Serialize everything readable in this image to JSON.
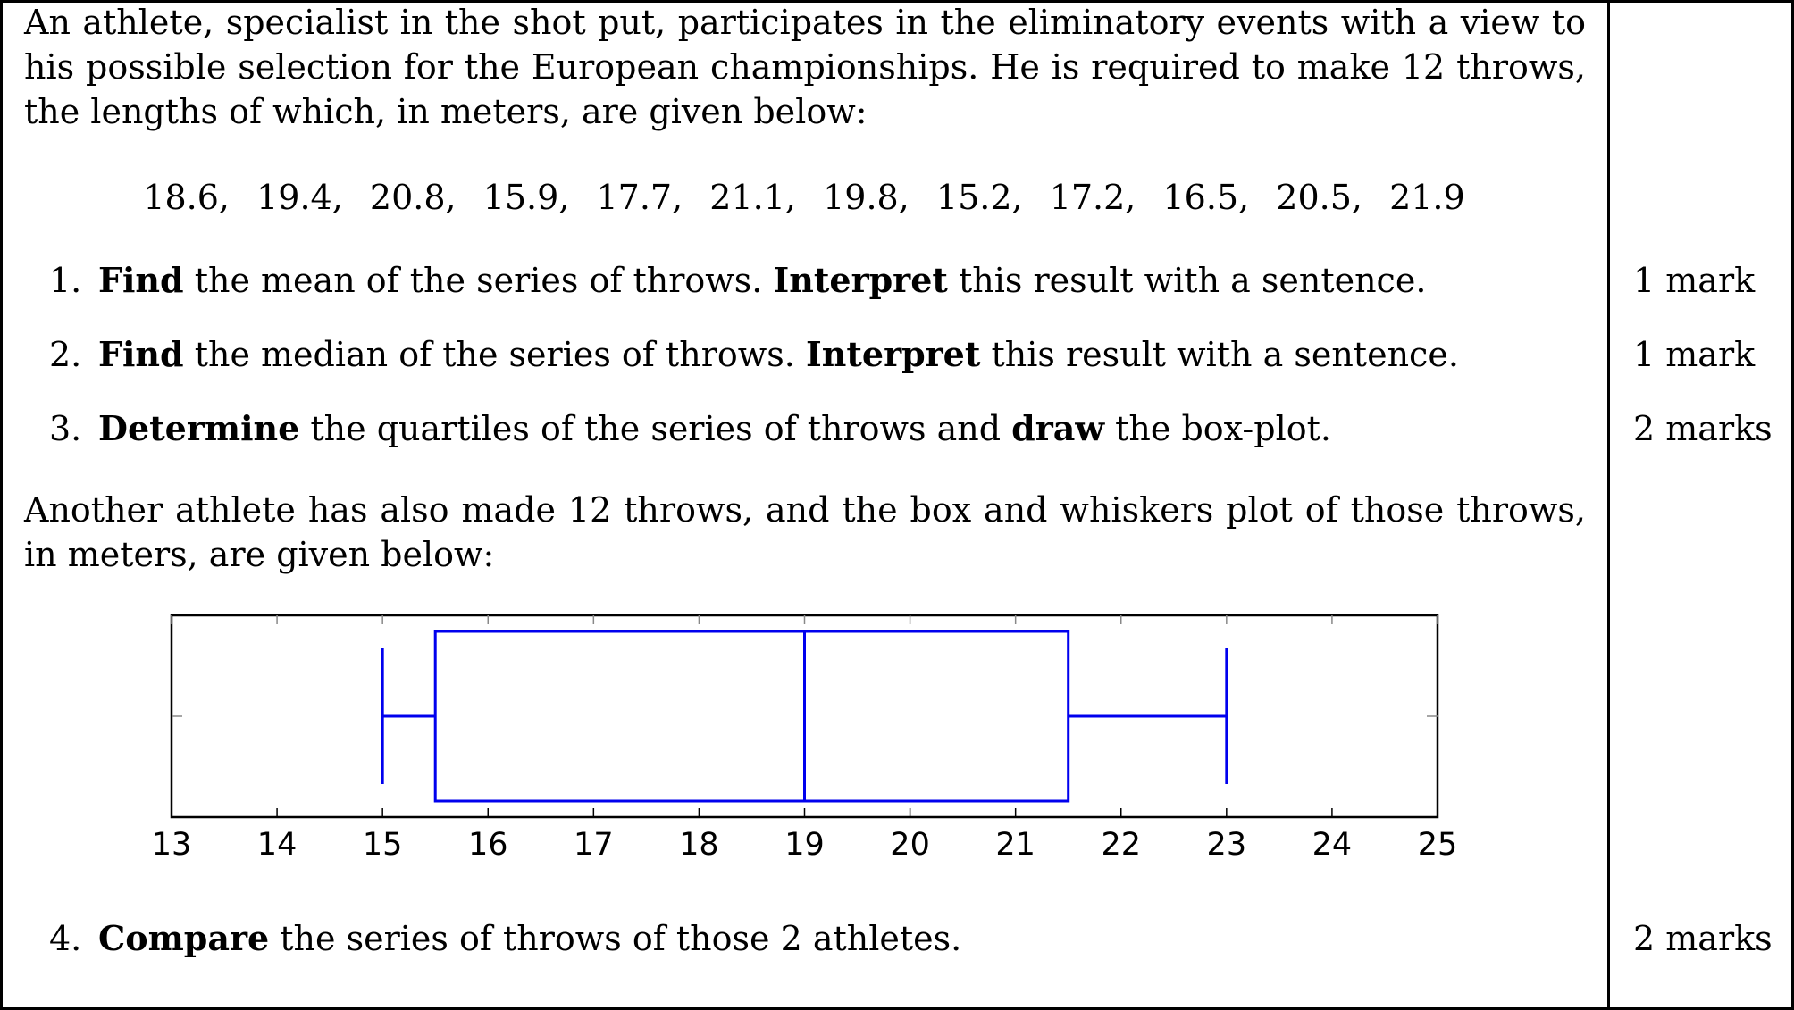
{
  "intro": "An athlete, specialist in the shot put, participates in the eliminatory events with a view to his possible selection for the European championships. He is required to make 12 throws, the lengths of which, in meters, are given below:",
  "throws": [
    "18.6,",
    "19.4,",
    "20.8,",
    "15.9,",
    "17.7,",
    "21.1,",
    "19.8,",
    "15.2,",
    "17.2,",
    "16.5,",
    "20.5,",
    "21.9"
  ],
  "questions": [
    {
      "num": "1.",
      "parts": [
        "Find",
        " the mean of the series of throws. ",
        "Interpret",
        " this result with a sentence."
      ],
      "mark": "1 mark"
    },
    {
      "num": "2.",
      "parts": [
        "Find",
        " the median of the series of throws. ",
        "Interpret",
        " this result with a sentence."
      ],
      "mark": "1 mark"
    },
    {
      "num": "3.",
      "parts": [
        "Determine",
        " the quartiles of the series of throws and ",
        "draw",
        " the box-plot."
      ],
      "mark": "2 marks"
    },
    {
      "num": "4.",
      "parts": [
        "Compare",
        " the series of throws of those 2 athletes."
      ],
      "mark": "2 marks"
    }
  ],
  "second_intro": "Another athlete has also made 12 throws, and the box and whiskers plot of those throws, in meters, are given below:",
  "chart_data": {
    "type": "boxplot",
    "title": "",
    "xlabel": "",
    "ylabel": "",
    "xlim": [
      13,
      25
    ],
    "xticks": [
      "13",
      "14",
      "15",
      "16",
      "17",
      "18",
      "19",
      "20",
      "21",
      "22",
      "23",
      "24",
      "25"
    ],
    "grid": false,
    "series": [
      {
        "min": 15,
        "q1": 15.5,
        "median": 19,
        "q3": 21.5,
        "max": 23,
        "color": "#0000ee"
      }
    ]
  }
}
